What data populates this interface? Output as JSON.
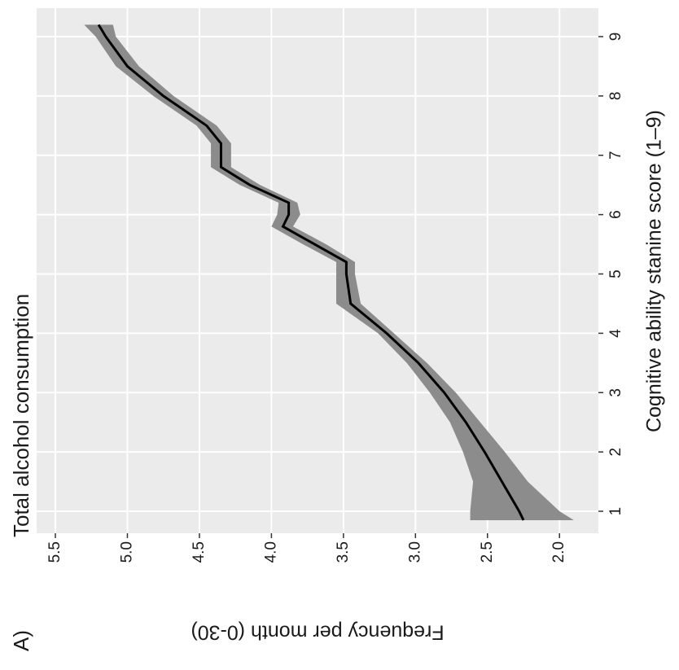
{
  "chart_data": {
    "type": "line",
    "panel_label": "A)",
    "title": "Total alcohol consumption",
    "x_label": "Cognitive ability stanine score (1–9)",
    "y_label": "Frequency per month (0-30)",
    "x": [
      0.85,
      1,
      1.5,
      2,
      2.5,
      3,
      3.5,
      4,
      4.5,
      5,
      5.2,
      5.5,
      5.8,
      6,
      6.2,
      6.5,
      6.8,
      7,
      7.2,
      7.5,
      8,
      8.5,
      9,
      9.2
    ],
    "values": [
      2.25,
      2.28,
      2.4,
      2.52,
      2.65,
      2.8,
      2.98,
      3.2,
      3.45,
      3.48,
      3.48,
      3.7,
      3.92,
      3.88,
      3.88,
      4.15,
      4.35,
      4.35,
      4.35,
      4.45,
      4.75,
      5.0,
      5.15,
      5.2
    ],
    "lower": [
      1.9,
      2.0,
      2.22,
      2.38,
      2.55,
      2.72,
      2.92,
      3.15,
      3.38,
      3.42,
      3.42,
      3.62,
      3.85,
      3.8,
      3.82,
      4.08,
      4.28,
      4.28,
      4.28,
      4.38,
      4.68,
      4.92,
      5.08,
      5.1
    ],
    "upper": [
      2.62,
      2.62,
      2.6,
      2.67,
      2.76,
      2.9,
      3.06,
      3.26,
      3.55,
      3.55,
      3.55,
      3.78,
      4.0,
      3.96,
      3.95,
      4.22,
      4.42,
      4.42,
      4.42,
      4.52,
      4.82,
      5.08,
      5.22,
      5.3
    ],
    "color": "#000000",
    "band_color": "#8c8c8c",
    "xlim": [
      0.63,
      9.48
    ],
    "xticks": [
      1,
      2,
      3,
      4,
      5,
      6,
      7,
      8,
      9
    ],
    "ylim": [
      1.73,
      5.63
    ],
    "yticks": [
      {
        "value": 2,
        "label": "2.0"
      },
      2.5,
      {
        "value": 3,
        "label": "3.0"
      },
      3.5,
      {
        "value": 4,
        "label": "4.0"
      },
      4.5,
      {
        "value": 5,
        "label": "5.0"
      },
      5.5
    ],
    "grid": true
  }
}
